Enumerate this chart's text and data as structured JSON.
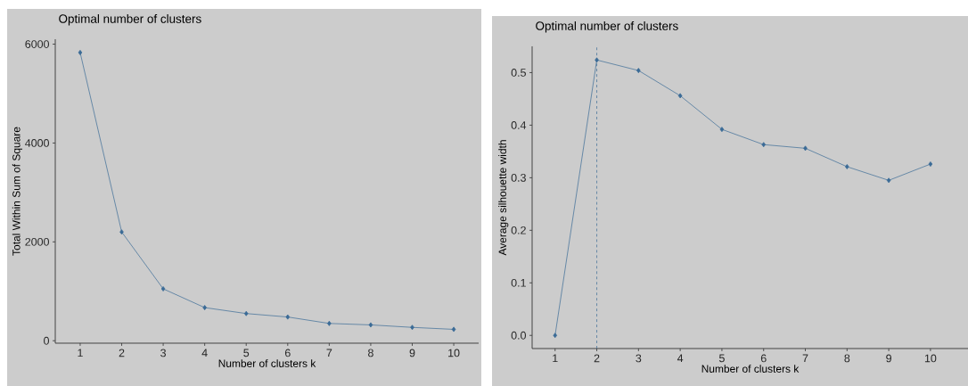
{
  "chart_data": [
    {
      "type": "line",
      "title": "Optimal number of clusters",
      "xlabel": "Number of clusters k",
      "ylabel": "Total Within Sum of Square",
      "x": [
        1,
        2,
        3,
        4,
        5,
        6,
        7,
        8,
        9,
        10
      ],
      "series": [
        {
          "color": "#3a6a96",
          "values": [
            5830,
            2200,
            1050,
            670,
            550,
            480,
            350,
            320,
            270,
            230
          ]
        }
      ],
      "xlim": [
        0.4,
        10.6
      ],
      "xticks": [
        1,
        2,
        3,
        4,
        5,
        6,
        7,
        8,
        9,
        10
      ],
      "ylim": [
        -50,
        6100
      ],
      "yticks": [
        0,
        2000,
        4000,
        6000
      ],
      "marker": "diamond",
      "grid": false
    },
    {
      "type": "line",
      "title": "Optimal number of clusters",
      "xlabel": "Number of clusters k",
      "ylabel": "Average silhouette width",
      "x": [
        1,
        2,
        3,
        4,
        5,
        6,
        7,
        8,
        9,
        10
      ],
      "series": [
        {
          "color": "#3a6a96",
          "values": [
            0.0,
            0.524,
            0.504,
            0.456,
            0.392,
            0.363,
            0.356,
            0.321,
            0.295,
            0.326
          ]
        }
      ],
      "xlim": [
        0.45,
        10.9
      ],
      "xticks": [
        1,
        2,
        3,
        4,
        5,
        6,
        7,
        8,
        9,
        10
      ],
      "ylim": [
        -0.025,
        0.55
      ],
      "yticks": [
        {
          "value": 0,
          "label": "0.0"
        },
        0.1,
        0.2,
        0.3,
        0.4,
        0.5
      ],
      "ref_lines": [
        {
          "axis": "x",
          "value": 2,
          "color": "#3a6a96",
          "line_style": "dashed"
        }
      ],
      "marker": "diamond",
      "grid": false
    }
  ]
}
